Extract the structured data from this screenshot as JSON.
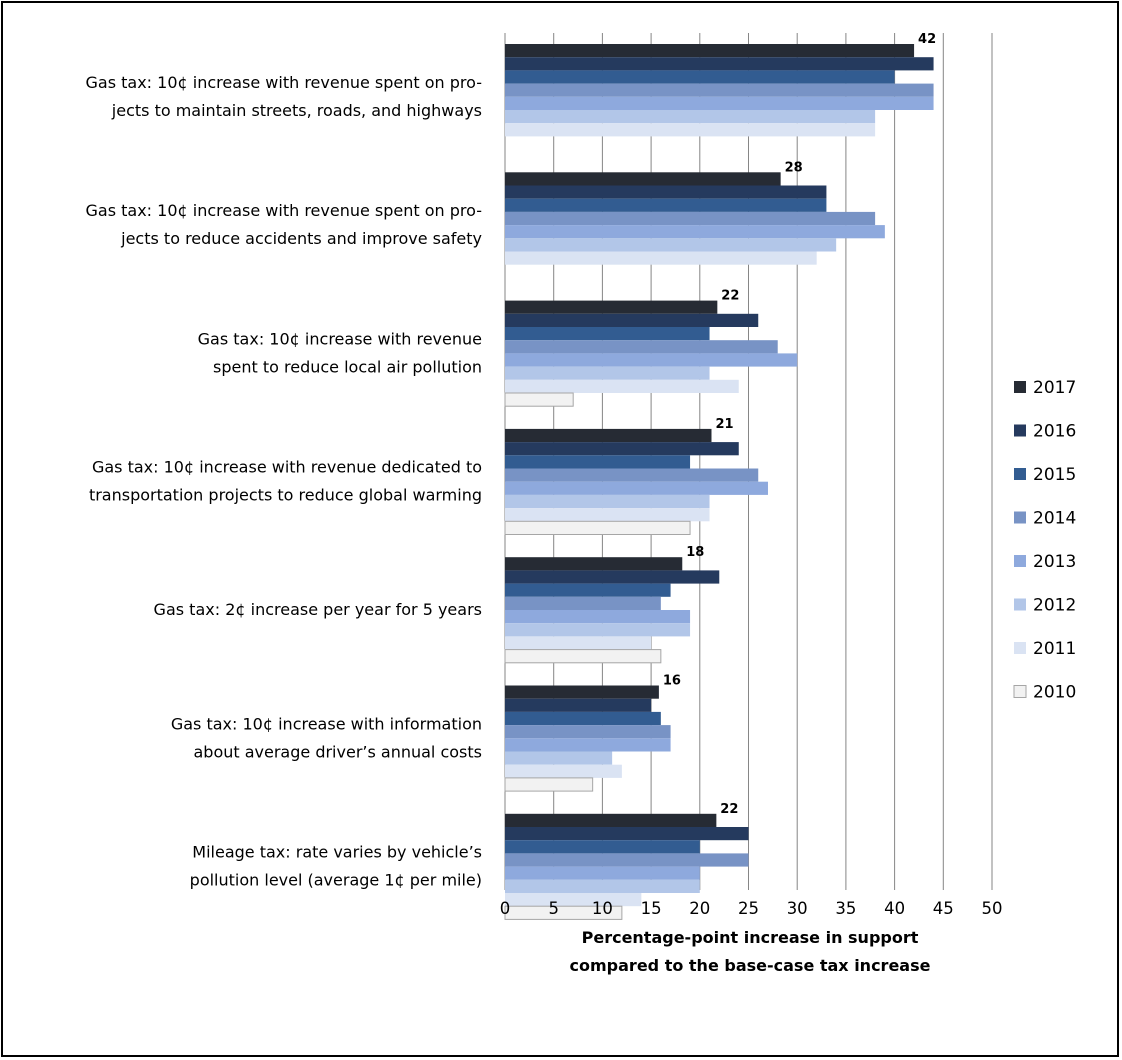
{
  "chart_data": {
    "type": "bar",
    "orientation": "horizontal",
    "categories": [
      [
        "Gas tax: 10¢ increase with revenue spent on pro-",
        "jects to maintain streets, roads, and highways"
      ],
      [
        "Gas tax: 10¢ increase with revenue spent on pro-",
        "jects to reduce accidents and improve safety"
      ],
      [
        "Gas tax: 10¢ increase with revenue",
        "spent to reduce local air pollution"
      ],
      [
        "Gas tax: 10¢ increase with revenue dedicated to",
        "transportation projects to reduce global warming"
      ],
      [
        "Gas tax: 2¢ increase per year for 5 years"
      ],
      [
        "Gas tax: 10¢ increase with information",
        "about average driver’s annual costs"
      ],
      [
        "Mileage tax: rate varies by vehicle’s",
        "pollution level (average 1¢ per mile)"
      ]
    ],
    "series": [
      {
        "name": "2017",
        "color": "#262b34",
        "values": [
          42,
          28.3,
          21.8,
          21.2,
          18.2,
          15.8,
          21.7
        ]
      },
      {
        "name": "2016",
        "color": "#253a5e",
        "values": [
          44,
          33,
          26,
          24,
          22,
          15,
          25
        ]
      },
      {
        "name": "2015",
        "color": "#325c91",
        "values": [
          40,
          33,
          21,
          19,
          17,
          16,
          20
        ]
      },
      {
        "name": "2014",
        "color": "#7893c5",
        "values": [
          44,
          38,
          28,
          26,
          16,
          17,
          25
        ]
      },
      {
        "name": "2013",
        "color": "#8ea9dd",
        "values": [
          44,
          39,
          30,
          27,
          19,
          17,
          20
        ]
      },
      {
        "name": "2012",
        "color": "#b2c6e8",
        "values": [
          38,
          34,
          21,
          21,
          19,
          11,
          20
        ]
      },
      {
        "name": "2011",
        "color": "#dae3f3",
        "values": [
          38,
          32,
          24,
          21,
          15,
          12,
          14
        ]
      },
      {
        "name": "2010",
        "color": "#f2f2f2",
        "stroke": "#a6a6a6",
        "values": [
          null,
          null,
          7,
          19,
          16,
          9,
          12
        ]
      }
    ],
    "data_labels": [
      "42",
      "28",
      "22",
      "21",
      "18",
      "16",
      "22"
    ],
    "x_ticks": [
      "0",
      "5",
      "10",
      "15",
      "20",
      "25",
      "30",
      "35",
      "40",
      "45",
      "50"
    ],
    "xlim": [
      0,
      50
    ],
    "xlabel": [
      "Percentage-point increase in support",
      "compared to the base-case tax increase"
    ],
    "ylabel": "",
    "title": "",
    "grid": "vertical",
    "gridline_color": "#868686",
    "legend_position": "right",
    "legend_order": [
      "2017",
      "2016",
      "2015",
      "2014",
      "2013",
      "2012",
      "2011",
      "2010"
    ]
  }
}
